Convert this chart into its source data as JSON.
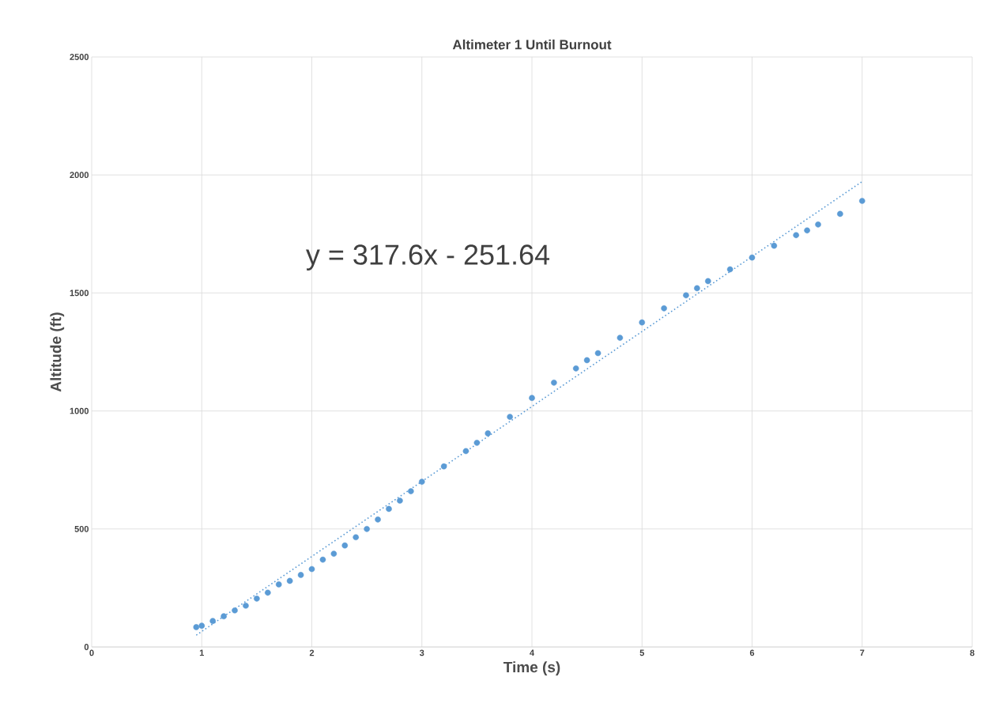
{
  "chart_data": {
    "type": "scatter",
    "title": "Altimeter 1 Until Burnout",
    "xlabel": "Time (s)",
    "ylabel": "Altitude (ft)",
    "xlim": [
      0,
      8
    ],
    "ylim": [
      0,
      2500
    ],
    "xticks": [
      0,
      1,
      2,
      3,
      4,
      5,
      6,
      7,
      8
    ],
    "yticks": [
      0,
      500,
      1000,
      1500,
      2000,
      2500
    ],
    "grid": true,
    "annotations": [
      "y = 317.6x - 251.64"
    ],
    "series": [
      {
        "type": "scatter",
        "color": "#5b9bd5",
        "marker": "circle",
        "x": [
          0.95,
          1.0,
          1.1,
          1.2,
          1.3,
          1.4,
          1.5,
          1.6,
          1.7,
          1.8,
          1.9,
          2.0,
          2.1,
          2.2,
          2.3,
          2.4,
          2.5,
          2.6,
          2.7,
          2.8,
          2.9,
          3.0,
          3.2,
          3.4,
          3.5,
          3.6,
          3.8,
          4.0,
          4.2,
          4.4,
          4.5,
          4.6,
          4.8,
          5.0,
          5.2,
          5.4,
          5.5,
          5.6,
          5.8,
          6.0,
          6.2,
          6.4,
          6.5,
          6.6,
          6.8,
          7.0
        ],
        "values": [
          84,
          90,
          110,
          130,
          155,
          175,
          205,
          230,
          265,
          280,
          305,
          330,
          370,
          395,
          430,
          465,
          500,
          540,
          585,
          620,
          660,
          700,
          765,
          830,
          865,
          905,
          975,
          1055,
          1120,
          1180,
          1215,
          1245,
          1310,
          1375,
          1435,
          1490,
          1520,
          1550,
          1600,
          1650,
          1700,
          1745,
          1765,
          1790,
          1835,
          1890
        ]
      },
      {
        "type": "line",
        "color": "#5b9bd5",
        "line_style": "dotted",
        "x": [
          0.95,
          7.0
        ],
        "values": [
          50,
          1972
        ]
      }
    ]
  }
}
